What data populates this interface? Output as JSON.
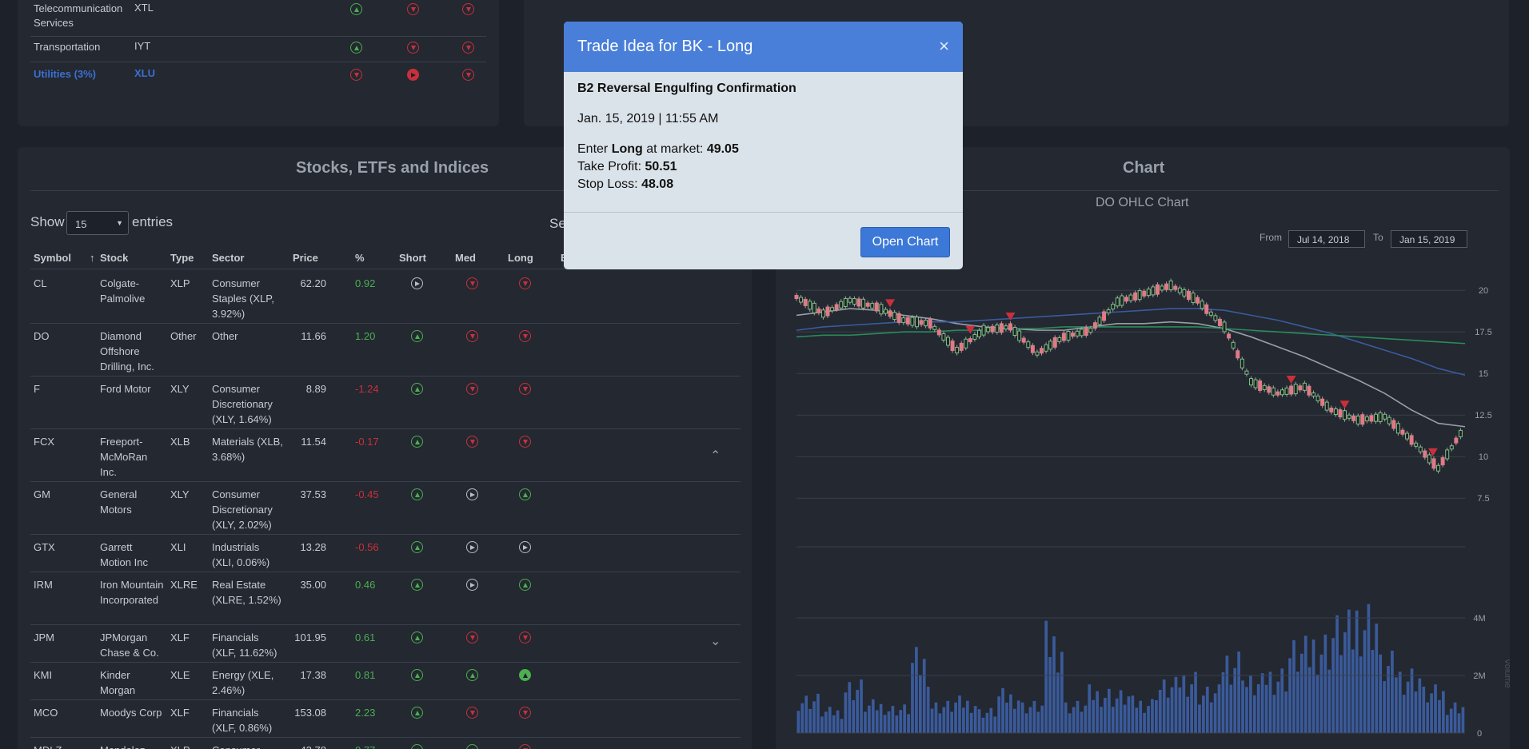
{
  "sectors": {
    "rows": [
      {
        "name": "Telecommunication Services",
        "symbol": "XTL",
        "short": "up",
        "med": "down",
        "long": "down"
      },
      {
        "name": "Transportation",
        "symbol": "IYT",
        "short": "up",
        "med": "down",
        "long": "down"
      },
      {
        "name": "Utilities (3%)",
        "symbol": "XLU",
        "short": "down",
        "med": "right-filled",
        "long": "down"
      }
    ]
  },
  "stocks": {
    "title": "Stocks, ETFs and Indices",
    "show_label": "Show",
    "entries_value": "15",
    "entries_label": "entries",
    "search_fragment": "Se",
    "columns": {
      "symbol": "Symbol",
      "sort_arrow": "↑",
      "stock": "Stock",
      "type": "Type",
      "sector": "Sector",
      "price": "Price",
      "pct": "%",
      "short": "Short",
      "med": "Med",
      "long": "Long",
      "extra": "E"
    },
    "rows": [
      {
        "symbol": "CL",
        "stock": "Colgate-Palmolive",
        "type": "XLP",
        "sector": "Consumer Staples (XLP, 3.92%)",
        "price": "62.20",
        "pct": "0.92",
        "short": "right",
        "med": "down",
        "long": "down"
      },
      {
        "symbol": "DO",
        "stock": "Diamond Offshore Drilling, Inc.",
        "type": "Other",
        "sector": "Other",
        "price": "11.66",
        "pct": "1.20",
        "short": "up",
        "med": "down",
        "long": "down"
      },
      {
        "symbol": "F",
        "stock": "Ford Motor",
        "type": "XLY",
        "sector": "Consumer Discretionary (XLY, 1.64%)",
        "price": "8.89",
        "pct": "-1.24",
        "short": "up",
        "med": "down",
        "long": "down"
      },
      {
        "symbol": "FCX",
        "stock": "Freeport-McMoRan Inc.",
        "type": "XLB",
        "sector": "Materials (XLB, 3.68%)",
        "price": "11.54",
        "pct": "-0.17",
        "short": "up",
        "med": "down",
        "long": "down"
      },
      {
        "symbol": "GM",
        "stock": "General Motors",
        "type": "XLY",
        "sector": "Consumer Discretionary (XLY, 2.02%)",
        "price": "37.53",
        "pct": "-0.45",
        "short": "up",
        "med": "right",
        "long": "up"
      },
      {
        "symbol": "GTX",
        "stock": "Garrett Motion Inc",
        "type": "XLI",
        "sector": "Industrials (XLI, 0.06%)",
        "price": "13.28",
        "pct": "-0.56",
        "short": "up",
        "med": "right",
        "long": "right"
      },
      {
        "symbol": "IRM",
        "stock": "Iron Mountain Incorporated",
        "type": "XLRE",
        "sector": "Real Estate (XLRE, 1.52%)",
        "price": "35.00",
        "pct": "0.46",
        "short": "up",
        "med": "right",
        "long": "up"
      },
      {
        "symbol": "JPM",
        "stock": "JPMorgan Chase & Co.",
        "type": "XLF",
        "sector": "Financials (XLF, 11.62%)",
        "price": "101.95",
        "pct": "0.61",
        "short": "up",
        "med": "down",
        "long": "down"
      },
      {
        "symbol": "KMI",
        "stock": "Kinder Morgan",
        "type": "XLE",
        "sector": "Energy (XLE, 2.46%)",
        "price": "17.38",
        "pct": "0.81",
        "short": "up",
        "med": "up",
        "long": "up-filled"
      },
      {
        "symbol": "MCO",
        "stock": "Moodys Corp",
        "type": "XLF",
        "sector": "Financials (XLF, 0.86%)",
        "price": "153.08",
        "pct": "2.23",
        "short": "up",
        "med": "down",
        "long": "down"
      },
      {
        "symbol": "MDLZ",
        "stock": "Mondelez",
        "type": "XLP",
        "sector": "Consumer",
        "price": "42.78",
        "pct": "0.77",
        "short": "up",
        "med": "up",
        "long": "down"
      }
    ]
  },
  "chart": {
    "panel_title": "Chart",
    "chart_title": "DO OHLC Chart",
    "from_label": "From",
    "from_value": "Jul 14, 2018",
    "to_label": "To",
    "to_value": "Jan 15, 2019",
    "volume_axis_label": "Volume"
  },
  "chart_data": {
    "type": "line",
    "title": "DO OHLC Chart",
    "price_axis_ticks": [
      "20",
      "17.5",
      "15",
      "12.5",
      "10",
      "7.5"
    ],
    "volume_axis_ticks": [
      "4M",
      "2M",
      "0"
    ],
    "ylim": [
      6.5,
      21.5
    ],
    "x": [
      1,
      2,
      3,
      4,
      5,
      6,
      7,
      8,
      9,
      10,
      11,
      12,
      13,
      14,
      15,
      16,
      17,
      18,
      19,
      20,
      21,
      22,
      23,
      24,
      25,
      26
    ],
    "series": [
      {
        "values": [
          19.6,
          18.6,
          19.4,
          19.0,
          18.2,
          18.0,
          16.4,
          17.6,
          17.8,
          16.2,
          17.2,
          17.6,
          19.3,
          19.8,
          20.3,
          19.4,
          17.8,
          14.5,
          13.8,
          14.2,
          12.8,
          12.2,
          12.4,
          11.0,
          9.3,
          11.8
        ]
      },
      {
        "values": [
          18.5,
          18.7,
          18.9,
          18.8,
          18.5,
          18.3,
          18.0,
          17.8,
          17.7,
          17.6,
          17.6,
          17.8,
          18.0,
          18.0,
          18.1,
          18.0,
          17.7,
          17.2,
          16.6,
          16.0,
          15.3,
          14.6,
          13.8,
          12.8,
          12.0,
          11.8
        ]
      },
      {
        "values": [
          17.6,
          17.8,
          17.9,
          18.0,
          18.1,
          18.1,
          18.1,
          18.2,
          18.3,
          18.4,
          18.5,
          18.6,
          18.7,
          18.8,
          18.9,
          18.9,
          18.8,
          18.5,
          18.2,
          17.8,
          17.4,
          16.9,
          16.4,
          15.9,
          15.3,
          14.9
        ]
      },
      {
        "values": [
          17.2,
          17.3,
          17.3,
          17.4,
          17.5,
          17.5,
          17.6,
          17.6,
          17.7,
          17.7,
          17.8,
          17.8,
          17.8,
          17.8,
          17.8,
          17.8,
          17.7,
          17.6,
          17.5,
          17.4,
          17.3,
          17.2,
          17.1,
          17.0,
          16.9,
          16.8
        ]
      }
    ],
    "signal_markers": [
      4.5,
      7.5,
      9,
      19.5,
      21.5,
      24.8
    ],
    "volume_m": [
      1.1,
      0.7,
      1.5,
      0.9,
      0.8,
      2.3,
      0.9,
      1.0,
      0.7,
      1.2,
      0.9,
      3.0,
      0.9,
      1.3,
      1.2,
      1.0,
      1.5,
      1.8,
      1.3,
      2.4,
      1.6,
      1.9,
      2.6,
      2.9,
      3.3,
      3.8,
      2.2,
      1.9,
      1.3,
      0.9
    ]
  }
}
